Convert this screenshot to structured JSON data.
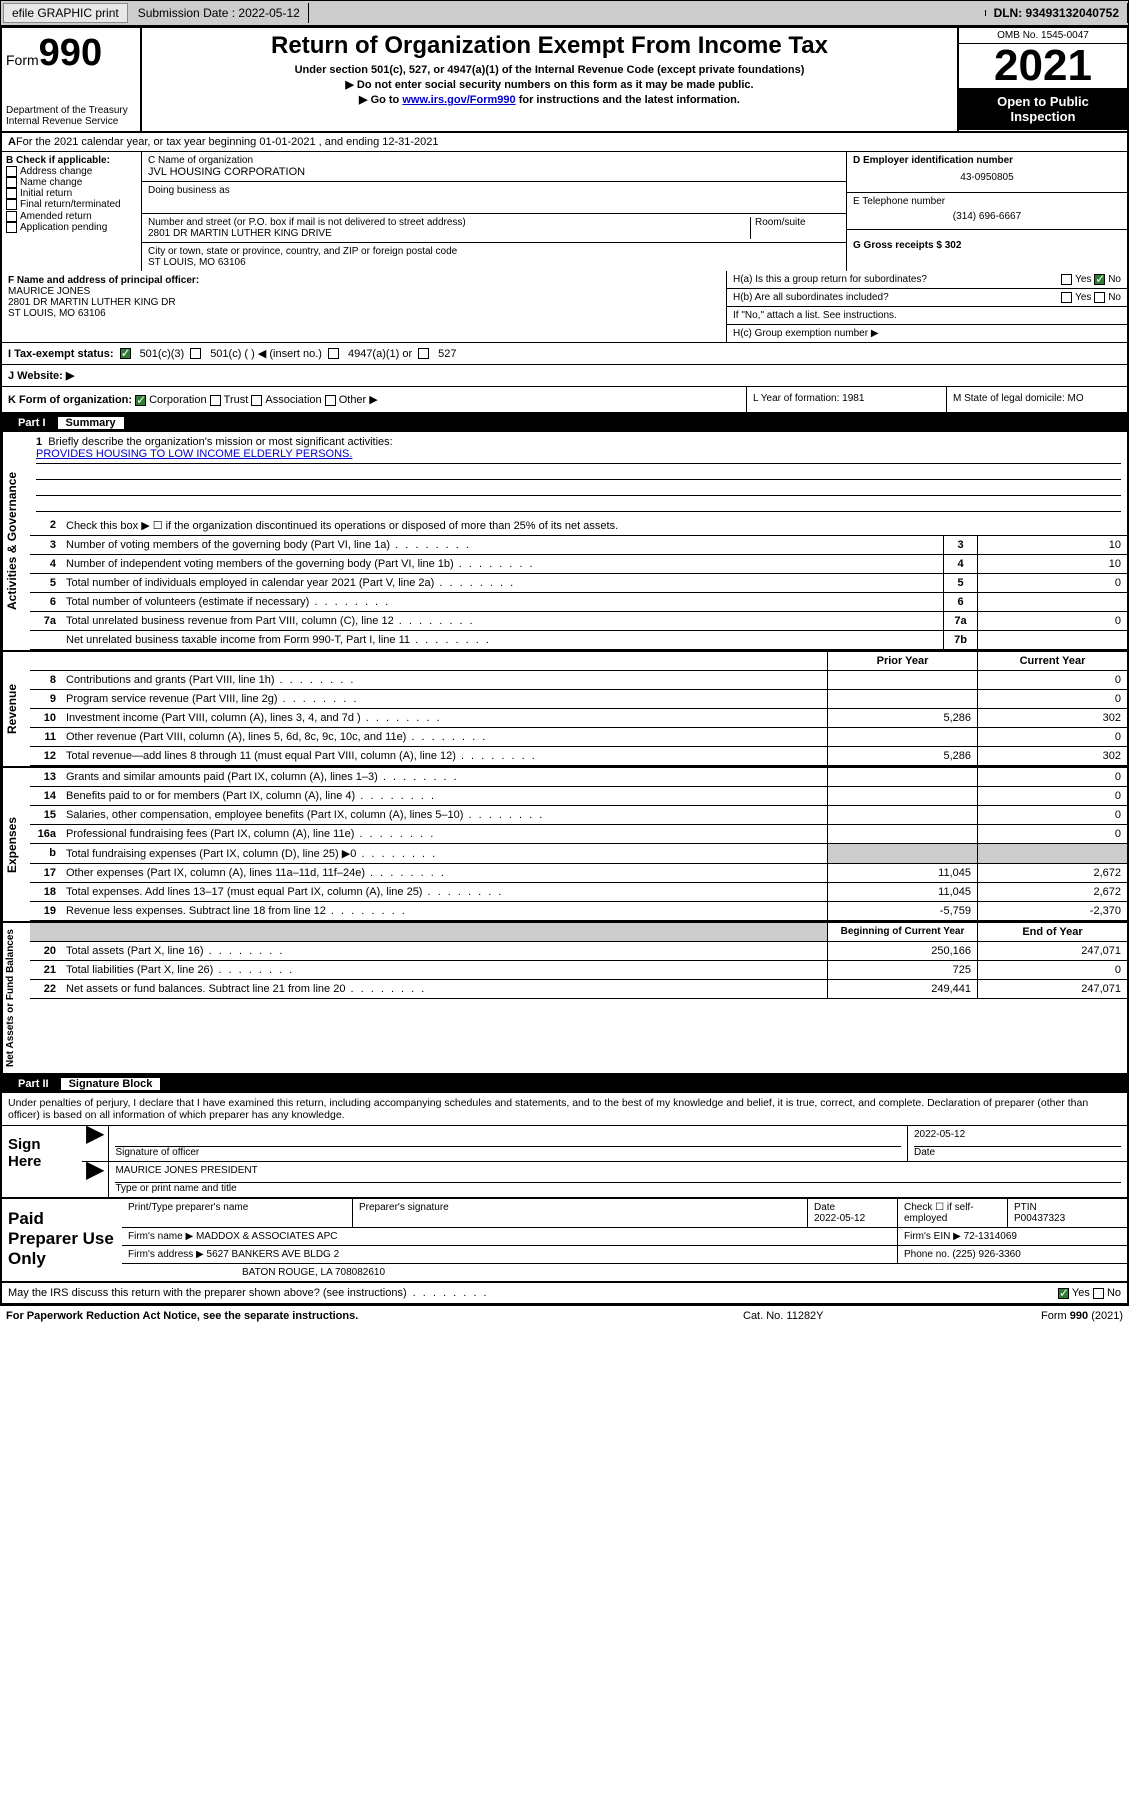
{
  "topbar": {
    "efile": "efile GRAPHIC print",
    "subLabel": "Submission Date : 2022-05-12",
    "dln": "DLN: 93493132040752"
  },
  "header": {
    "formWord": "Form",
    "formNum": "990",
    "dept": "Department of the Treasury\nInternal Revenue Service",
    "title": "Return of Organization Exempt From Income Tax",
    "sub1": "Under section 501(c), 527, or 4947(a)(1) of the Internal Revenue Code (except private foundations)",
    "sub2": "▶ Do not enter social security numbers on this form as it may be made public.",
    "sub3a": "▶ Go to ",
    "sub3link": "www.irs.gov/Form990",
    "sub3b": " for instructions and the latest information.",
    "omb": "OMB No. 1545-0047",
    "year": "2021",
    "open": "Open to Public Inspection"
  },
  "lineA": "For the 2021 calendar year, or tax year beginning 01-01-2021   , and ending 12-31-2021",
  "checkB": {
    "label": "B Check if applicable:",
    "items": [
      "Address change",
      "Name change",
      "Initial return",
      "Final return/terminated",
      "Amended return",
      "Application pending"
    ]
  },
  "blockC": {
    "nameLabel": "C Name of organization",
    "name": "JVL HOUSING CORPORATION",
    "dba": "Doing business as",
    "streetLabel": "Number and street (or P.O. box if mail is not delivered to street address)",
    "street": "2801 DR MARTIN LUTHER KING DRIVE",
    "room": "Room/suite",
    "cityLabel": "City or town, state or province, country, and ZIP or foreign postal code",
    "city": "ST LOUIS, MO  63106"
  },
  "blockD": {
    "einLabel": "D Employer identification number",
    "ein": "43-0950805",
    "telLabel": "E Telephone number",
    "tel": "(314) 696-6667",
    "grossLabel": "G Gross receipts $ 302"
  },
  "blockF": {
    "label": "F  Name and address of principal officer:",
    "name": "MAURICE JONES",
    "addr1": "2801 DR MARTIN LUTHER KING DR",
    "addr2": "ST LOUIS, MO  63106"
  },
  "blockH": {
    "ha": "H(a)  Is this a group return for subordinates?",
    "hb": "H(b)  Are all subordinates included?",
    "hbNote": "If \"No,\" attach a list. See instructions.",
    "hc": "H(c)  Group exemption number ▶",
    "yes": "Yes",
    "no": "No"
  },
  "lineI": {
    "label": "I   Tax-exempt status:",
    "c3": "501(c)(3)",
    "c": "501(c) (  ) ◀ (insert no.)",
    "a1": "4947(a)(1) or",
    "s527": "527"
  },
  "lineJ": "J   Website: ▶",
  "lineK": {
    "label": "K Form of organization:",
    "corp": "Corporation",
    "trust": "Trust",
    "assoc": "Association",
    "other": "Other ▶"
  },
  "lineL": "L Year of formation: 1981",
  "lineM": "M State of legal domicile: MO",
  "part1": {
    "hdr": "Part I",
    "title": "Summary",
    "tab1": "Activities & Governance",
    "tab2": "Revenue",
    "tab3": "Expenses",
    "tab4": "Net Assets or Fund Balances",
    "l1": "Briefly describe the organization's mission or most significant activities:",
    "mission": "PROVIDES HOUSING TO LOW INCOME ELDERLY PERSONS.",
    "l2": "Check this box ▶ ☐  if the organization discontinued its operations or disposed of more than 25% of its net assets.",
    "lines": [
      {
        "n": "3",
        "t": "Number of voting members of the governing body (Part VI, line 1a)",
        "b": "3",
        "v": "10"
      },
      {
        "n": "4",
        "t": "Number of independent voting members of the governing body (Part VI, line 1b)",
        "b": "4",
        "v": "10"
      },
      {
        "n": "5",
        "t": "Total number of individuals employed in calendar year 2021 (Part V, line 2a)",
        "b": "5",
        "v": "0"
      },
      {
        "n": "6",
        "t": "Total number of volunteers (estimate if necessary)",
        "b": "6",
        "v": ""
      },
      {
        "n": "7a",
        "t": "Total unrelated business revenue from Part VIII, column (C), line 12",
        "b": "7a",
        "v": "0"
      },
      {
        "n": "",
        "t": "Net unrelated business taxable income from Form 990-T, Part I, line 11",
        "b": "7b",
        "v": ""
      }
    ],
    "colPrior": "Prior Year",
    "colCurrent": "Current Year",
    "revenue": [
      {
        "n": "8",
        "t": "Contributions and grants (Part VIII, line 1h)",
        "p": "",
        "c": "0"
      },
      {
        "n": "9",
        "t": "Program service revenue (Part VIII, line 2g)",
        "p": "",
        "c": "0"
      },
      {
        "n": "10",
        "t": "Investment income (Part VIII, column (A), lines 3, 4, and 7d )",
        "p": "5,286",
        "c": "302"
      },
      {
        "n": "11",
        "t": "Other revenue (Part VIII, column (A), lines 5, 6d, 8c, 9c, 10c, and 11e)",
        "p": "",
        "c": "0"
      },
      {
        "n": "12",
        "t": "Total revenue—add lines 8 through 11 (must equal Part VIII, column (A), line 12)",
        "p": "5,286",
        "c": "302"
      }
    ],
    "expenses": [
      {
        "n": "13",
        "t": "Grants and similar amounts paid (Part IX, column (A), lines 1–3)",
        "p": "",
        "c": "0"
      },
      {
        "n": "14",
        "t": "Benefits paid to or for members (Part IX, column (A), line 4)",
        "p": "",
        "c": "0"
      },
      {
        "n": "15",
        "t": "Salaries, other compensation, employee benefits (Part IX, column (A), lines 5–10)",
        "p": "",
        "c": "0"
      },
      {
        "n": "16a",
        "t": "Professional fundraising fees (Part IX, column (A), line 11e)",
        "p": "",
        "c": "0"
      },
      {
        "n": "b",
        "t": "Total fundraising expenses (Part IX, column (D), line 25) ▶0",
        "p": "shade",
        "c": "shade"
      },
      {
        "n": "17",
        "t": "Other expenses (Part IX, column (A), lines 11a–11d, 11f–24e)",
        "p": "11,045",
        "c": "2,672"
      },
      {
        "n": "18",
        "t": "Total expenses. Add lines 13–17 (must equal Part IX, column (A), line 25)",
        "p": "11,045",
        "c": "2,672"
      },
      {
        "n": "19",
        "t": "Revenue less expenses. Subtract line 18 from line 12",
        "p": "-5,759",
        "c": "-2,370"
      }
    ],
    "colBeg": "Beginning of Current Year",
    "colEnd": "End of Year",
    "net": [
      {
        "n": "20",
        "t": "Total assets (Part X, line 16)",
        "p": "250,166",
        "c": "247,071"
      },
      {
        "n": "21",
        "t": "Total liabilities (Part X, line 26)",
        "p": "725",
        "c": "0"
      },
      {
        "n": "22",
        "t": "Net assets or fund balances. Subtract line 21 from line 20",
        "p": "249,441",
        "c": "247,071"
      }
    ]
  },
  "part2": {
    "hdr": "Part II",
    "title": "Signature Block",
    "decl": "Under penalties of perjury, I declare that I have examined this return, including accompanying schedules and statements, and to the best of my knowledge and belief, it is true, correct, and complete. Declaration of preparer (other than officer) is based on all information of which preparer has any knowledge."
  },
  "sign": {
    "label": "Sign Here",
    "sigLabel": "Signature of officer",
    "date": "2022-05-12",
    "dateLabel": "Date",
    "name": "MAURICE JONES PRESIDENT",
    "nameLabel": "Type or print name and title"
  },
  "prep": {
    "label": "Paid Preparer Use Only",
    "h1": "Print/Type preparer's name",
    "h2": "Preparer's signature",
    "h3": "Date",
    "h3v": "2022-05-12",
    "h4": "Check ☐ if self-employed",
    "h5": "PTIN",
    "h5v": "P00437323",
    "firmNameL": "Firm's name    ▶",
    "firmName": "MADDOX & ASSOCIATES APC",
    "firmEinL": "Firm's EIN ▶",
    "firmEin": "72-1314069",
    "firmAddrL": "Firm's address ▶",
    "firmAddr1": "5627 BANKERS AVE BLDG 2",
    "firmAddr2": "BATON ROUGE, LA  708082610",
    "phoneL": "Phone no.",
    "phone": "(225) 926-3360"
  },
  "discuss": {
    "q": "May the IRS discuss this return with the preparer shown above? (see instructions)",
    "yes": "Yes",
    "no": "No"
  },
  "footer": {
    "l": "For Paperwork Reduction Act Notice, see the separate instructions.",
    "m": "Cat. No. 11282Y",
    "r": "Form 990 (2021)"
  }
}
